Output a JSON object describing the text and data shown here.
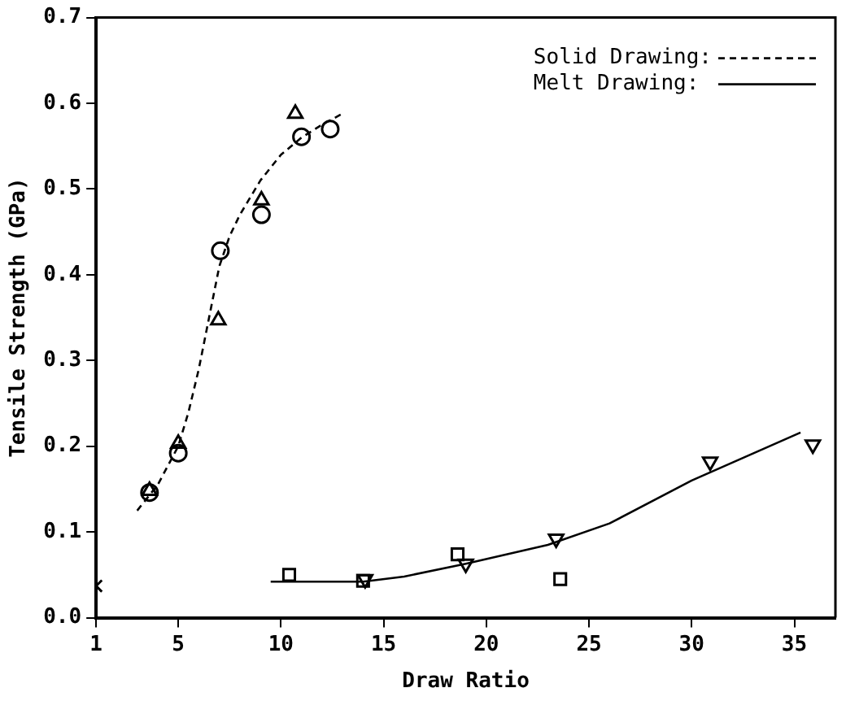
{
  "chart_data": {
    "type": "scatter",
    "xlabel": "Draw Ratio",
    "ylabel": "Tensile Strength (GPa)",
    "xlim": [
      1,
      37
    ],
    "xticks": [
      1,
      5,
      10,
      15,
      20,
      25,
      30,
      35
    ],
    "ylim": [
      0,
      0.7
    ],
    "yticks": [
      {
        "value": 0,
        "label": "0.0"
      },
      {
        "value": 0.1,
        "label": "0.1"
      },
      {
        "value": 0.2,
        "label": "0.2"
      },
      {
        "value": 0.3,
        "label": "0.3"
      },
      {
        "value": 0.4,
        "label": "0.4"
      },
      {
        "value": 0.5,
        "label": "0.5"
      },
      {
        "value": 0.6,
        "label": "0.6"
      },
      {
        "value": 0.7,
        "label": "0.7"
      }
    ],
    "grid": false,
    "legend": "top right",
    "series": [
      {
        "type": "scatter",
        "color": "#000000",
        "marker": "circle",
        "x": [
          3.6,
          5,
          7.05,
          9.05,
          11,
          12.4
        ],
        "values": [
          0.146,
          0.192,
          0.428,
          0.47,
          0.561,
          0.57
        ]
      },
      {
        "type": "scatter",
        "color": "#000000",
        "marker": "triangle",
        "x": [
          3.6,
          5,
          6.95,
          9.05,
          10.7
        ],
        "values": [
          0.148,
          0.203,
          0.347,
          0.487,
          0.588
        ]
      },
      {
        "type": "scatter",
        "color": "#000000",
        "marker": "cross",
        "x": [
          1
        ],
        "values": [
          0.037
        ]
      },
      {
        "type": "scatter",
        "color": "#000000",
        "marker": "square",
        "x": [
          10.4,
          14,
          18.6,
          23.6
        ],
        "values": [
          0.05,
          0.043,
          0.074,
          0.045
        ]
      },
      {
        "type": "scatter",
        "color": "#000000",
        "marker": "triangle_down",
        "x": [
          14.1,
          19,
          23.4,
          30.9,
          35.9
        ],
        "values": [
          0.045,
          0.063,
          0.092,
          0.182,
          0.202
        ]
      },
      {
        "type": "line",
        "name": "Solid Drawing:",
        "color": "#000000",
        "marker": "none",
        "line_style": "dashed",
        "x": [
          3,
          4,
          5,
          5.5,
          6,
          6.5,
          7,
          7.5,
          8,
          9,
          10,
          11,
          12,
          13
        ],
        "values": [
          0.125,
          0.155,
          0.2,
          0.24,
          0.29,
          0.35,
          0.41,
          0.445,
          0.47,
          0.51,
          0.54,
          0.56,
          0.575,
          0.588
        ]
      },
      {
        "type": "line",
        "name": "Melt Drawing:",
        "color": "#000000",
        "marker": "none",
        "line_style": "solid",
        "x": [
          9.5,
          14,
          16,
          19,
          23,
          26,
          30,
          35.3
        ],
        "values": [
          0.042,
          0.042,
          0.048,
          0.063,
          0.085,
          0.11,
          0.16,
          0.216
        ]
      }
    ]
  }
}
